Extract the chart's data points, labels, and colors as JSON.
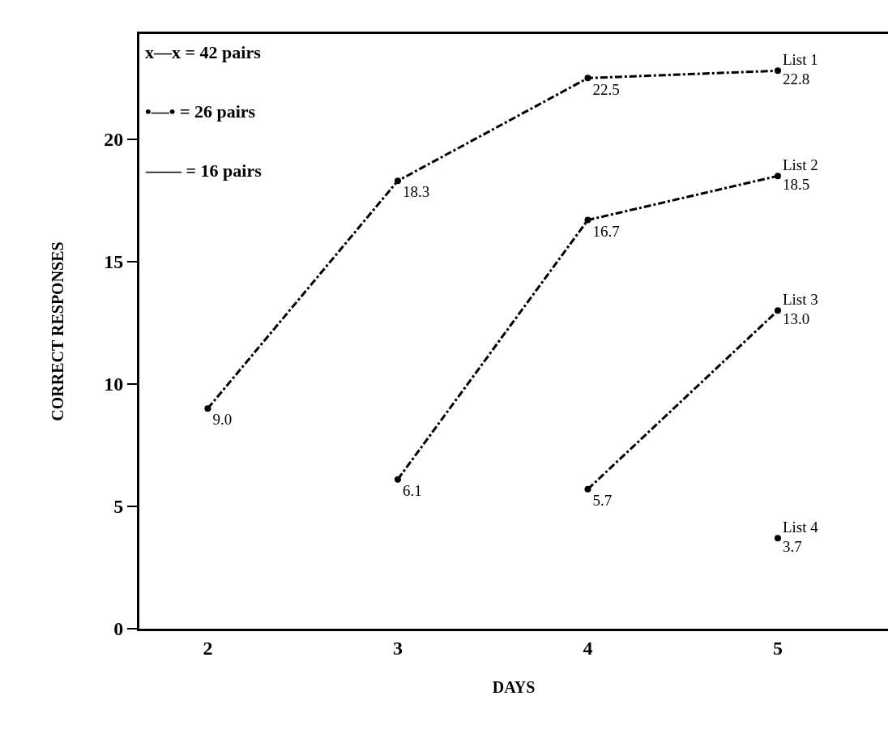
{
  "chart_data": {
    "type": "line",
    "xlabel": "DAYS",
    "ylabel": "CORRECT RESPONSES",
    "series": [
      {
        "name": "List 1",
        "color": "#000000",
        "x": [
          2,
          3,
          4,
          5
        ],
        "values": [
          9.0,
          18.3,
          22.5,
          22.8
        ],
        "value_labels": [
          "9.0",
          "18.3",
          "22.5",
          "22.8"
        ]
      },
      {
        "name": "List 2",
        "color": "#000000",
        "x": [
          3,
          4,
          5
        ],
        "values": [
          6.1,
          16.7,
          18.5
        ]
      },
      {
        "name": "List 3",
        "color": "#000000",
        "x": [
          4,
          5
        ],
        "values": [
          5.7,
          13.0
        ],
        "value_labels": [
          "5.7",
          "13.0"
        ]
      },
      {
        "name": "List 4",
        "color": "#000000",
        "x": [
          5
        ],
        "values": [
          3.7
        ]
      }
    ],
    "data_labels": true,
    "annotations": [
      "x—x = 42 pairs",
      "•—• = 26 pairs",
      "—— = 16 pairs"
    ],
    "xlim": [
      1.64,
      5.58
    ],
    "xticks": [
      2,
      3,
      4,
      5
    ],
    "ylim": [
      0,
      24.3
    ],
    "yticks": [
      0,
      5,
      10,
      15,
      20
    ],
    "grid": false,
    "legend": false,
    "marker": "circle",
    "line_style": "dashed"
  }
}
